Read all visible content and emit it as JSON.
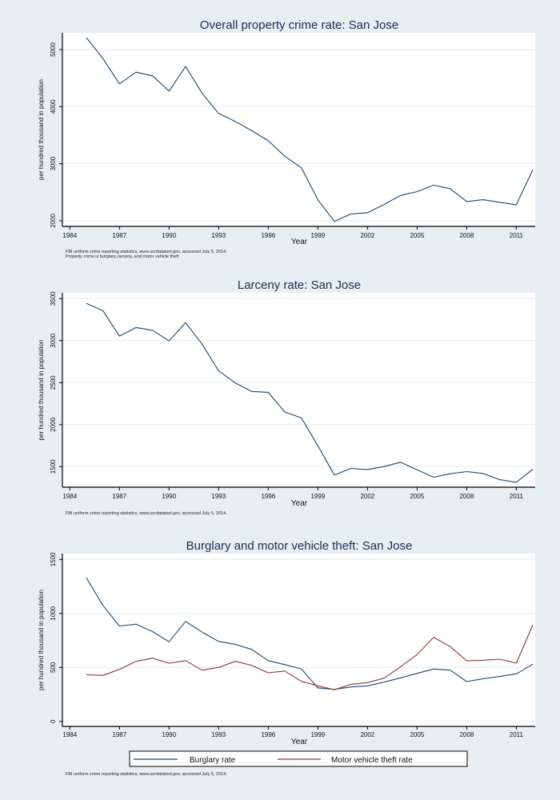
{
  "colors": {
    "background": "#e7eff2",
    "plot_background": "#ffffff",
    "gridline": "#e6eef1",
    "series_blue": "#1a476f",
    "series_red": "#90353b",
    "title": "#1c2a56"
  },
  "chart_data": [
    {
      "type": "line",
      "title": "Overall property crime rate: San Jose",
      "xlabel": "Year",
      "ylabel": "per hundred thousand in population",
      "x_ticks": [
        1984,
        1987,
        1990,
        1993,
        1996,
        1999,
        2002,
        2005,
        2008,
        2011
      ],
      "x_tick_labels": [
        "1984",
        "1987",
        "1990",
        "1993",
        "1996",
        "1999",
        "2002",
        "2005",
        "2008",
        "2011"
      ],
      "y_ticks": [
        2000,
        3000,
        4000,
        5000
      ],
      "y_tick_labels": [
        "2000",
        "3000",
        "4000",
        "5000"
      ],
      "grid": true,
      "notes": [
        "FBI uniform crime reporting statistics, www.ucrdatatool.gov, accessed July 5, 2014.",
        "Property crime is burglary, larceny, and motor vehicle theft"
      ],
      "x": [
        1985,
        1986,
        1987,
        1988,
        1989,
        1990,
        1991,
        1992,
        1993,
        1994,
        1995,
        1996,
        1997,
        1998,
        1999,
        2000,
        2001,
        2002,
        2003,
        2004,
        2005,
        2006,
        2007,
        2008,
        2009,
        2010,
        2011,
        2012
      ],
      "series": [
        {
          "name": "Property crime rate",
          "color": "#1a476f",
          "values": [
            5210,
            4845,
            4400,
            4605,
            4540,
            4272,
            4704,
            4234,
            3882,
            3741,
            3578,
            3403,
            3131,
            2930,
            2366,
            1990,
            2121,
            2141,
            2286,
            2445,
            2511,
            2624,
            2563,
            2338,
            2370,
            2324,
            2282,
            2897
          ]
        }
      ]
    },
    {
      "type": "line",
      "title": "Larceny rate: San Jose",
      "xlabel": "Year",
      "ylabel": "per hundred thousand in population",
      "x_ticks": [
        1984,
        1987,
        1990,
        1993,
        1996,
        1999,
        2002,
        2005,
        2008,
        2011
      ],
      "x_tick_labels": [
        "1984",
        "1987",
        "1990",
        "1993",
        "1996",
        "1999",
        "2002",
        "2005",
        "2008",
        "2011"
      ],
      "y_ticks": [
        1500,
        2000,
        2500,
        3000,
        3500
      ],
      "y_tick_labels": [
        "1500",
        "2000",
        "2500",
        "3000",
        "3500"
      ],
      "grid": true,
      "notes": [
        "FBI uniform crime reporting statistics, www.ucrdatatool.gov, accessed July 5, 2014."
      ],
      "x": [
        1985,
        1986,
        1987,
        1988,
        1989,
        1990,
        1991,
        1992,
        1993,
        1994,
        1995,
        1996,
        1997,
        1998,
        1999,
        2000,
        2001,
        2002,
        2003,
        2004,
        2005,
        2006,
        2007,
        2008,
        2009,
        2010,
        2011,
        2012
      ],
      "series": [
        {
          "name": "Larceny rate",
          "color": "#1a476f",
          "values": [
            3443,
            3357,
            3054,
            3156,
            3124,
            2997,
            3214,
            2957,
            2640,
            2497,
            2395,
            2385,
            2150,
            2080,
            1749,
            1400,
            1479,
            1466,
            1501,
            1552,
            1463,
            1374,
            1415,
            1441,
            1419,
            1345,
            1314,
            1469
          ]
        }
      ]
    },
    {
      "type": "line",
      "title": "Burglary and motor vehicle theft: San Jose",
      "xlabel": "Year",
      "ylabel": "per hundred thousand in population",
      "x_ticks": [
        1984,
        1987,
        1990,
        1993,
        1996,
        1999,
        2002,
        2005,
        2008,
        2011
      ],
      "x_tick_labels": [
        "1984",
        "1987",
        "1990",
        "1993",
        "1996",
        "1999",
        "2002",
        "2005",
        "2008",
        "2011"
      ],
      "y_ticks": [
        0,
        500,
        1000,
        1500
      ],
      "y_tick_labels": [
        "0",
        "500",
        "1000",
        "1500"
      ],
      "grid": true,
      "legend": {
        "placement": "bottom",
        "entries": [
          "Burglary rate",
          "Motor vehicle theft rate"
        ]
      },
      "notes": [
        "FBI uniform crime reporting statistics, www.ucrdatatool.gov, accessed July 5, 2014."
      ],
      "x": [
        1985,
        1986,
        1987,
        1988,
        1989,
        1990,
        1991,
        1992,
        1993,
        1994,
        1995,
        1996,
        1997,
        1998,
        1999,
        2000,
        2001,
        2002,
        2003,
        2004,
        2005,
        2006,
        2007,
        2008,
        2009,
        2010,
        2011,
        2012
      ],
      "series": [
        {
          "name": "Burglary rate",
          "color": "#1a476f",
          "values": [
            1330,
            1075,
            884,
            901,
            832,
            738,
            926,
            827,
            741,
            714,
            667,
            563,
            526,
            487,
            310,
            297,
            319,
            330,
            364,
            404,
            445,
            485,
            475,
            369,
            396,
            416,
            441,
            530
          ]
        },
        {
          "name": "Motor vehicle theft rate",
          "color": "#90353b",
          "values": [
            433,
            426,
            482,
            556,
            586,
            539,
            563,
            474,
            500,
            556,
            519,
            450,
            467,
            371,
            330,
            293,
            344,
            359,
            401,
            507,
            619,
            779,
            693,
            561,
            567,
            576,
            539,
            895
          ]
        }
      ]
    }
  ]
}
